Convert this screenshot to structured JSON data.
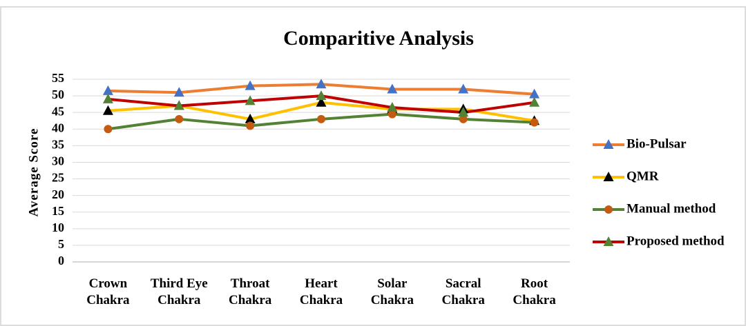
{
  "chart_data": {
    "type": "line",
    "title": "Comparitive Analysis",
    "y_label": "Average Score",
    "categories": [
      "Crown Chakra",
      "Third Eye Chakra",
      "Throat Chakra",
      "Heart Chakra",
      "Solar Chakra",
      "Sacral Chakra",
      "Root Chakra"
    ],
    "series": [
      {
        "name": "Bio-Pulsar",
        "color": "#ed7d31",
        "marker": "triangle",
        "marker_color": "#4472c4",
        "values": [
          51.5,
          51,
          53,
          53.5,
          52,
          52,
          50.5
        ]
      },
      {
        "name": "QMR",
        "color": "#ffc000",
        "marker": "triangle",
        "marker_color": "#000000",
        "values": [
          45.5,
          47,
          43,
          48,
          46,
          46,
          42.5
        ]
      },
      {
        "name": "Manual method",
        "color": "#548235",
        "marker": "circle",
        "marker_color": "#c55a11",
        "values": [
          40,
          43,
          41,
          43,
          44.5,
          43,
          42
        ]
      },
      {
        "name": "Proposed method",
        "color": "#c00000",
        "marker": "triangle",
        "marker_color": "#548235",
        "values": [
          49,
          47,
          48.5,
          50,
          46.5,
          45,
          48
        ]
      }
    ],
    "ylim": [
      0,
      55
    ],
    "yticks": [
      0,
      5,
      10,
      15,
      20,
      25,
      30,
      35,
      40,
      45,
      50,
      55
    ],
    "grid": true,
    "legend": "right"
  }
}
